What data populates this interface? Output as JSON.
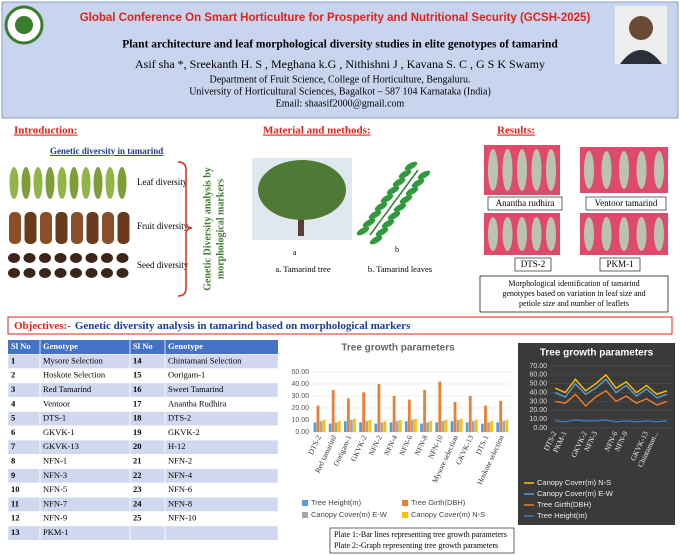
{
  "header": {
    "title": "Global Conference On Smart Horticulture for Prosperity and Nutritional Security (GCSH-2025)",
    "subtitle": "Plant architecture and leaf morphological diversity studies in elite genotypes of tamarind",
    "authors": "Asif sha *, Sreekanth H. S , Meghana k.G , Nithishni J ,  Kavana S. C , G S K Swamy",
    "department": "Department of Fruit Science, College of Horticulture, Bengaluru.",
    "university": "University of Horticultural Sciences, Bagalkot – 587 104 Karnataka (India)",
    "email": "Email: shaasif2000@gmail.com"
  },
  "sections": {
    "introduction": "Introduction:",
    "methods": "Material and methods:",
    "results": "Results:"
  },
  "introduction": {
    "heading": "Genetic diversity in tamarind",
    "labels": [
      "Leaf diversity",
      "Fruit diversity",
      "Seed diversity"
    ],
    "side_text": [
      "Genetic Diversity analysis by",
      "morphological markers"
    ]
  },
  "methods": {
    "figures": [
      {
        "letter": "a",
        "caption": "a.  Tamarind tree"
      },
      {
        "letter": "b",
        "caption": "b. Tamarind leaves"
      }
    ]
  },
  "results": {
    "labels": [
      "Anantha rudhira",
      "Ventoor tamarind",
      "DTS-2",
      "PKM-1"
    ],
    "caption": [
      "Morphological identification of tamarind",
      "genotypes based on variation in leaf size and",
      "petiole size and number of leaflets"
    ]
  },
  "objectives": {
    "label": "Objectives:-",
    "text": "Genetic diversity analysis in tamarind based on morphological markers"
  },
  "table": {
    "header": [
      "Sl No",
      "Genotype",
      "Sl No",
      "Genotype"
    ],
    "rows": [
      [
        "1",
        "Mysore Selection",
        "14",
        "Chintamani Selection"
      ],
      [
        "2",
        "Hoskote Selection",
        "15",
        "Oorigam-1"
      ],
      [
        "3",
        "Red Tamarind",
        "16",
        "Sweet Tamarind"
      ],
      [
        "4",
        "Ventoor",
        "17",
        "Anantha Rudhira"
      ],
      [
        "5",
        "DTS-1",
        "18",
        "DTS-2"
      ],
      [
        "6",
        "GKVK-1",
        "19",
        "GKVK-2"
      ],
      [
        "7",
        "GKVK-13",
        "20",
        "H-12"
      ],
      [
        "8",
        "NFN-1",
        "21",
        "NFN-2"
      ],
      [
        "9",
        "NFN-3",
        "22",
        "NFN-4"
      ],
      [
        "10",
        "NFN-5",
        "23",
        "NFN-6"
      ],
      [
        "11",
        "NFN-7",
        "24",
        "NFN-8"
      ],
      [
        "12",
        "NFN-9",
        "25",
        "NFN-10"
      ],
      [
        "13",
        "PKM-1"
      ]
    ]
  },
  "chart_data": [
    {
      "type": "bar",
      "title": "Tree growth parameters",
      "categories": [
        "DTS-2",
        "Red tamarind",
        "Oorigam-1",
        "GKVK-2",
        "NFN-2",
        "NFN-4",
        "NFN-6",
        "NFN-8",
        "NFN-10",
        "Mysore selection",
        "GKVK-13",
        "DTS-1",
        "Hoskote selection"
      ],
      "series": [
        {
          "name": "Tree Height(m)",
          "color": "#5b9bd5",
          "values": [
            8,
            7,
            9,
            8,
            7,
            8,
            9,
            7,
            8,
            9,
            8,
            7,
            8
          ]
        },
        {
          "name": "Tree Girth(DBH)",
          "color": "#ed7d31",
          "values": [
            22,
            35,
            28,
            33,
            40,
            30,
            27,
            35,
            42,
            25,
            30,
            22,
            26
          ]
        },
        {
          "name": "Canopy Cover(m) E-W",
          "color": "#a5a5a5",
          "values": [
            9,
            8,
            10,
            9,
            8,
            9,
            10,
            8,
            9,
            10,
            9,
            8,
            9
          ]
        },
        {
          "name": "Canopy Cover(m) N-S",
          "color": "#ffc000",
          "values": [
            10,
            9,
            11,
            10,
            9,
            10,
            11,
            9,
            10,
            11,
            10,
            9,
            10
          ]
        }
      ],
      "ylim": [
        0,
        50
      ],
      "yticks": [
        {
          "value": 0,
          "label": "0.00"
        },
        {
          "value": 10,
          "label": "10.00"
        },
        {
          "value": 20,
          "label": "20.00"
        },
        {
          "value": 30,
          "label": "30.00"
        },
        {
          "value": 40,
          "label": "40.00"
        },
        {
          "value": 50,
          "label": "50.00"
        }
      ],
      "grid": true
    },
    {
      "type": "line",
      "title": "Tree growth parameters",
      "categories": [
        "DTS-2",
        "PKM-1",
        null,
        "GKVK-2",
        "NFN-3",
        null,
        "NFN-6",
        "NFN-9",
        null,
        "GKVK-13",
        "Chintaman...",
        null
      ],
      "series": [
        {
          "name": "Canopy Cover(m) N-S",
          "color": "#ffc000",
          "values": [
            45,
            40,
            55,
            42,
            50,
            60,
            45,
            52,
            40,
            48,
            38,
            42
          ]
        },
        {
          "name": "Canopy Cover(m) E-W",
          "color": "#5b9bd5",
          "values": [
            40,
            35,
            50,
            38,
            45,
            55,
            40,
            48,
            36,
            44,
            34,
            38
          ]
        },
        {
          "name": "Tree Girth(DBH)",
          "color": "#ed7d31",
          "values": [
            30,
            28,
            38,
            25,
            35,
            42,
            30,
            36,
            28,
            33,
            26,
            30
          ]
        },
        {
          "name": "Tree Height(m)",
          "color": "#4472c4",
          "values": [
            8,
            7,
            9,
            8,
            8,
            9,
            7,
            8,
            7,
            8,
            7,
            8
          ]
        }
      ],
      "ylim": [
        0,
        70
      ],
      "yticks": [
        {
          "value": 0,
          "label": "0.00"
        },
        {
          "value": 10,
          "label": "10.00"
        },
        {
          "value": 20,
          "label": "20.00"
        },
        {
          "value": 30,
          "label": "30.00"
        },
        {
          "value": 40,
          "label": "40.00"
        },
        {
          "value": 50,
          "label": "50.00"
        },
        {
          "value": 60,
          "label": "60.00"
        },
        {
          "value": 70,
          "label": "70.00"
        }
      ],
      "grid": true
    }
  ],
  "plates": [
    "Plate 1:-Bar lines representing tree growth parameters",
    "Plate 2:-Graph representing tree growth parameters"
  ]
}
